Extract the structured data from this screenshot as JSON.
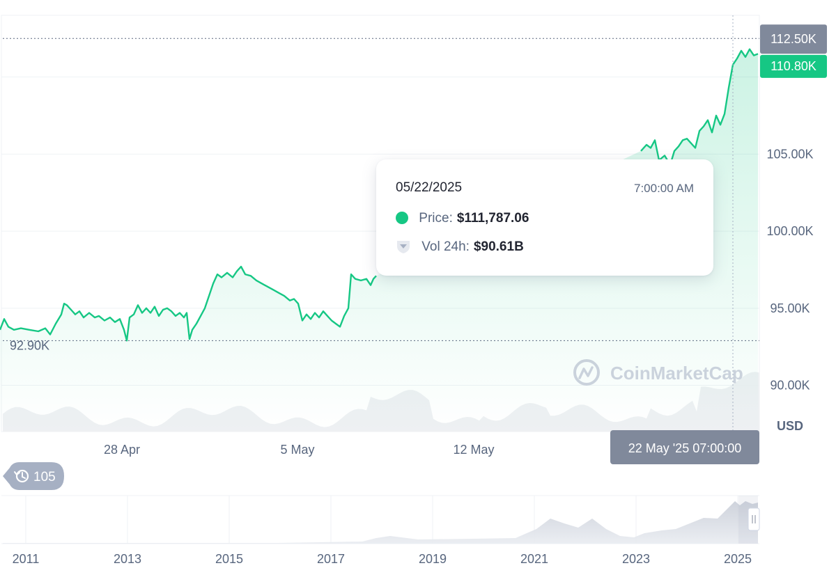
{
  "chart_data": {
    "type": "line",
    "currency": "USD",
    "price_series": {
      "name": "Price",
      "color": "#16c784",
      "x_labels": [
        "28 Apr",
        "5 May",
        "12 May"
      ],
      "points": [
        [
          0,
          93.6
        ],
        [
          6,
          94.3
        ],
        [
          12,
          93.8
        ],
        [
          20,
          93.6
        ],
        [
          30,
          93.7
        ],
        [
          42,
          93.6
        ],
        [
          55,
          93.5
        ],
        [
          65,
          93.7
        ],
        [
          72,
          93.3
        ],
        [
          80,
          94.0
        ],
        [
          88,
          94.6
        ],
        [
          92,
          95.3
        ],
        [
          96,
          95.2
        ],
        [
          102,
          94.9
        ],
        [
          108,
          94.6
        ],
        [
          114,
          94.8
        ],
        [
          120,
          94.4
        ],
        [
          128,
          94.7
        ],
        [
          136,
          94.4
        ],
        [
          142,
          94.5
        ],
        [
          150,
          94.2
        ],
        [
          158,
          94.4
        ],
        [
          165,
          94.1
        ],
        [
          172,
          94.3
        ],
        [
          178,
          93.6
        ],
        [
          182,
          92.9
        ],
        [
          186,
          94.4
        ],
        [
          192,
          94.6
        ],
        [
          198,
          95.2
        ],
        [
          204,
          94.7
        ],
        [
          210,
          95.0
        ],
        [
          216,
          94.7
        ],
        [
          222,
          95.1
        ],
        [
          228,
          94.5
        ],
        [
          234,
          94.9
        ],
        [
          240,
          95.0
        ],
        [
          246,
          94.8
        ],
        [
          252,
          94.5
        ],
        [
          258,
          94.7
        ],
        [
          264,
          94.4
        ],
        [
          268,
          94.7
        ],
        [
          272,
          93.0
        ],
        [
          276,
          93.6
        ],
        [
          282,
          94.0
        ],
        [
          288,
          94.5
        ],
        [
          294,
          95.0
        ],
        [
          300,
          95.8
        ],
        [
          306,
          96.6
        ],
        [
          312,
          97.2
        ],
        [
          318,
          97.0
        ],
        [
          326,
          97.3
        ],
        [
          334,
          97.0
        ],
        [
          340,
          97.4
        ],
        [
          346,
          97.7
        ],
        [
          352,
          97.2
        ],
        [
          360,
          97.1
        ],
        [
          368,
          96.8
        ],
        [
          376,
          96.6
        ],
        [
          384,
          96.4
        ],
        [
          392,
          96.2
        ],
        [
          400,
          96.0
        ],
        [
          408,
          95.8
        ],
        [
          416,
          95.5
        ],
        [
          422,
          95.6
        ],
        [
          428,
          95.3
        ],
        [
          434,
          94.2
        ],
        [
          440,
          94.6
        ],
        [
          446,
          94.3
        ],
        [
          452,
          94.7
        ],
        [
          458,
          94.4
        ],
        [
          464,
          94.8
        ],
        [
          470,
          94.5
        ],
        [
          476,
          94.2
        ],
        [
          482,
          94.0
        ],
        [
          488,
          93.8
        ],
        [
          494,
          94.5
        ],
        [
          500,
          95.0
        ],
        [
          504,
          97.2
        ],
        [
          510,
          96.9
        ],
        [
          518,
          96.8
        ],
        [
          526,
          96.9
        ],
        [
          532,
          96.5
        ],
        [
          536,
          96.9
        ],
        [
          540,
          97.1
        ],
        [
          920,
          105.2
        ],
        [
          928,
          105.6
        ],
        [
          934,
          105.4
        ],
        [
          940,
          105.9
        ],
        [
          946,
          104.6
        ],
        [
          954,
          104.9
        ],
        [
          962,
          104.3
        ],
        [
          968,
          105.2
        ],
        [
          974,
          105.5
        ],
        [
          980,
          105.9
        ],
        [
          986,
          106.0
        ],
        [
          992,
          105.7
        ],
        [
          998,
          105.4
        ],
        [
          1004,
          106.5
        ],
        [
          1010,
          106.8
        ],
        [
          1016,
          107.2
        ],
        [
          1022,
          106.4
        ],
        [
          1028,
          107.5
        ],
        [
          1034,
          106.9
        ],
        [
          1040,
          107.6
        ],
        [
          1046,
          109.3
        ],
        [
          1052,
          110.8
        ],
        [
          1058,
          111.2
        ],
        [
          1064,
          111.7
        ],
        [
          1070,
          111.3
        ],
        [
          1076,
          111.8
        ],
        [
          1082,
          111.4
        ],
        [
          1088,
          111.5
        ]
      ]
    },
    "y_axis": {
      "ticks": [
        "90.00K",
        "95.00K",
        "100.00K",
        "105.00K"
      ],
      "ylim": [
        87.0,
        114.0
      ],
      "unit_label": "USD"
    },
    "reference_lines": [
      {
        "label": "112.50K",
        "value": 112.5
      },
      {
        "label": "92.90K",
        "value": 92.9
      }
    ],
    "current_price_label": "110.80K",
    "volume_series": {
      "name": "Vol 24h",
      "color": "#d9dde6"
    },
    "crosshair": {
      "label": "22 May '25 07:00:00"
    },
    "tooltip": {
      "date": "05/22/2025",
      "time": "7:00:00 AM",
      "price_label": "Price:",
      "price_value": "$111,787.06",
      "vol_label": "Vol 24h:",
      "vol_value": "$90.61B"
    },
    "watermark": "CoinMarketCap",
    "history_badge": "105",
    "navigator": {
      "years": [
        "2011",
        "2013",
        "2015",
        "2017",
        "2019",
        "2021",
        "2023",
        "2025"
      ]
    }
  },
  "colors": {
    "price_line": "#16c784",
    "label_bg_dark": "#80899b",
    "label_bg_green": "#16c784",
    "grid": "#eff2f5",
    "axis_text": "#58667e",
    "volume": "#e4e7ee"
  }
}
